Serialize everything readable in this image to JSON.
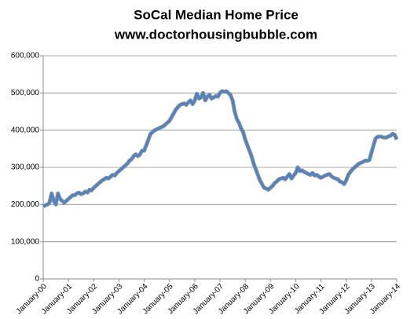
{
  "chart_data": {
    "type": "line",
    "title": "SoCal Median Home Price",
    "subtitle": "www.doctorhousingbubble.com",
    "categories": [
      "January-00",
      null,
      null,
      null,
      null,
      null,
      null,
      null,
      null,
      null,
      null,
      null,
      "January-01",
      null,
      null,
      null,
      null,
      null,
      null,
      null,
      null,
      null,
      null,
      null,
      "January-02",
      null,
      null,
      null,
      null,
      null,
      null,
      null,
      null,
      null,
      null,
      null,
      "January-03",
      null,
      null,
      null,
      null,
      null,
      null,
      null,
      null,
      null,
      null,
      null,
      "January-04",
      null,
      null,
      null,
      null,
      null,
      null,
      null,
      null,
      null,
      null,
      null,
      "January-05",
      null,
      null,
      null,
      null,
      null,
      null,
      null,
      null,
      null,
      null,
      null,
      "January-06",
      null,
      null,
      null,
      null,
      null,
      null,
      null,
      null,
      null,
      null,
      null,
      "January-07",
      null,
      null,
      null,
      null,
      null,
      null,
      null,
      null,
      null,
      null,
      null,
      "January-08",
      null,
      null,
      null,
      null,
      null,
      null,
      null,
      null,
      null,
      null,
      null,
      "January-09",
      null,
      null,
      null,
      null,
      null,
      null,
      null,
      null,
      null,
      null,
      null,
      "January-10",
      null,
      null,
      null,
      null,
      null,
      null,
      null,
      null,
      null,
      null,
      null,
      "January-11",
      null,
      null,
      null,
      null,
      null,
      null,
      null,
      null,
      null,
      null,
      null,
      "January-12",
      null,
      null,
      null,
      null,
      null,
      null,
      null,
      null,
      null,
      null,
      null,
      "January-13",
      null,
      null,
      null,
      null,
      null,
      null,
      null,
      null,
      null,
      null,
      null,
      "January-14"
    ],
    "series": [
      {
        "color": "#4f81bd",
        "values": [
          195000,
          198000,
          200000,
          205000,
          230000,
          210000,
          200000,
          230000,
          215000,
          210000,
          205000,
          210000,
          215000,
          220000,
          225000,
          225000,
          230000,
          232000,
          228000,
          230000,
          235000,
          232000,
          240000,
          238000,
          245000,
          250000,
          255000,
          260000,
          265000,
          268000,
          272000,
          270000,
          275000,
          280000,
          278000,
          285000,
          290000,
          295000,
          300000,
          305000,
          310000,
          318000,
          322000,
          330000,
          335000,
          330000,
          335000,
          345000,
          345000,
          360000,
          375000,
          390000,
          395000,
          400000,
          402000,
          405000,
          408000,
          410000,
          415000,
          420000,
          425000,
          435000,
          445000,
          455000,
          462000,
          468000,
          470000,
          472000,
          468000,
          475000,
          480000,
          470000,
          480000,
          498000,
          485000,
          488000,
          500000,
          480000,
          490000,
          495000,
          485000,
          488000,
          492000,
          490000,
          500000,
          505000,
          503000,
          505000,
          500000,
          495000,
          480000,
          450000,
          430000,
          420000,
          405000,
          395000,
          375000,
          360000,
          345000,
          330000,
          310000,
          295000,
          280000,
          265000,
          255000,
          245000,
          243000,
          240000,
          245000,
          250000,
          258000,
          262000,
          268000,
          270000,
          272000,
          268000,
          275000,
          282000,
          270000,
          278000,
          285000,
          300000,
          290000,
          292000,
          288000,
          285000,
          282000,
          280000,
          285000,
          278000,
          280000,
          275000,
          272000,
          275000,
          278000,
          280000,
          282000,
          276000,
          272000,
          270000,
          268000,
          262000,
          260000,
          255000,
          265000,
          280000,
          288000,
          295000,
          300000,
          305000,
          310000,
          312000,
          315000,
          318000,
          318000,
          320000,
          340000,
          360000,
          378000,
          382000,
          383000,
          382000,
          380000,
          380000,
          383000,
          385000,
          390000,
          388000,
          375000
        ]
      }
    ],
    "ylim": [
      0,
      600000
    ],
    "yticks": [
      0,
      {
        "value": 100000,
        "label": "100,000"
      },
      {
        "value": 200000,
        "label": "200,000"
      },
      {
        "value": 300000,
        "label": "300,000"
      },
      {
        "value": 400000,
        "label": "400,000"
      },
      {
        "value": 500000,
        "label": "500,000"
      },
      {
        "value": 600000,
        "label": "600,000"
      }
    ],
    "grid": true
  }
}
